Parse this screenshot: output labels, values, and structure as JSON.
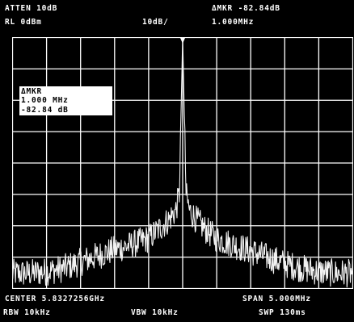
{
  "header": {
    "atten": "ATTEN 10dB",
    "ref_level": "RL 0dBm",
    "scale": "10dB/",
    "delta_marker": "ΔMKR -82.84dB",
    "delta_marker_freq": "1.000MHz"
  },
  "marker_readout": {
    "label": "ΔMKR",
    "freq": "1.000 MHz",
    "level": "-82.84 dB"
  },
  "footer": {
    "center": "CENTER 5.8327256GHz",
    "span": "SPAN 5.000MHz",
    "rbw": "RBW 10kHz",
    "vbw": "VBW 10kHz",
    "sweep": "SWP 130ms"
  },
  "chart_data": {
    "type": "line",
    "title": "",
    "xlabel": "",
    "ylabel": "",
    "x_divisions": 10,
    "y_divisions": 8,
    "center_freq": "5.8327256GHz",
    "span": "5.000MHz",
    "reference_level": "0dBm",
    "scale_per_division": "10dB/",
    "delta_marker_db": -82.84,
    "delta_marker_freq_mhz": 1.0,
    "series": [
      {
        "x": [
          0,
          0.5,
          1,
          1.5,
          2,
          2.5,
          3,
          3.5,
          4,
          4.3,
          4.6,
          4.8,
          4.9,
          5.0,
          5.1,
          5.2,
          5.4,
          5.7,
          6,
          6.5,
          7,
          7.5,
          8,
          8.5,
          9,
          9.5,
          10
        ],
        "y": [
          -75,
          -75,
          -74.5,
          -73.5,
          -71.5,
          -69.5,
          -67.5,
          -66,
          -64,
          -61,
          -58,
          -55,
          -50,
          0,
          -50,
          -55,
          -58,
          -61.5,
          -64,
          -66,
          -68,
          -70,
          -72,
          -73.5,
          -74.5,
          -75,
          -75
        ]
      }
    ]
  }
}
